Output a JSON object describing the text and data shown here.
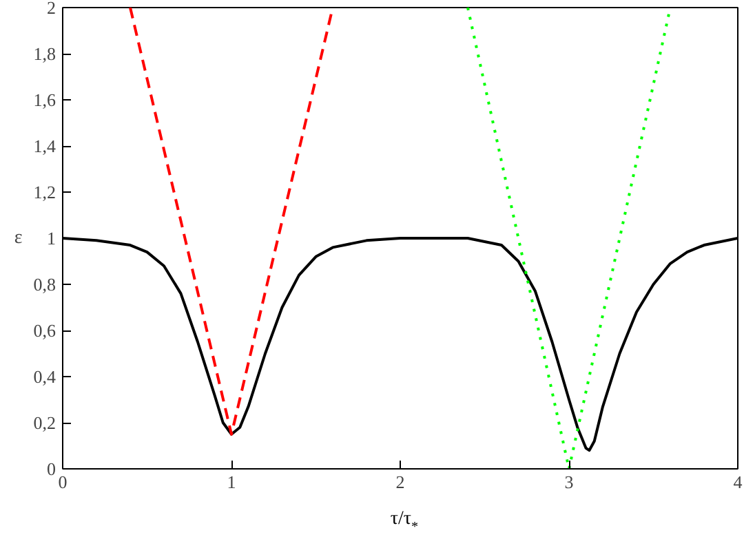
{
  "chart_data": {
    "type": "line",
    "xlabel": "τ/τ$_{*}$",
    "ylabel": "ε",
    "xlim": [
      0,
      4
    ],
    "ylim": [
      0,
      2
    ],
    "xticks": [
      0,
      1,
      2,
      3,
      4
    ],
    "yticks": [
      {
        "value": 0,
        "label": "0"
      },
      {
        "value": 0.2,
        "label": "0,2"
      },
      {
        "value": 0.4,
        "label": "0,4"
      },
      {
        "value": 0.6,
        "label": "0,6"
      },
      {
        "value": 0.8,
        "label": "0,8"
      },
      {
        "value": 1,
        "label": "1"
      },
      {
        "value": 1.2,
        "label": "1,2"
      },
      {
        "value": 1.4,
        "label": "1,4"
      },
      {
        "value": 1.6,
        "label": "1,6"
      },
      {
        "value": 1.8,
        "label": "1,8"
      },
      {
        "value": 2,
        "label": "2"
      }
    ],
    "grid": false,
    "series": [
      {
        "color": "#000000",
        "line_style": "solid",
        "x": [
          0,
          0.2,
          0.4,
          0.5,
          0.6,
          0.7,
          0.8,
          0.9,
          0.95,
          1.0,
          1.05,
          1.1,
          1.2,
          1.3,
          1.4,
          1.5,
          1.6,
          1.8,
          2.0,
          2.4,
          2.6,
          2.7,
          2.8,
          2.9,
          3.0,
          3.05,
          3.1,
          3.12,
          3.15,
          3.2,
          3.3,
          3.4,
          3.5,
          3.6,
          3.7,
          3.8,
          4.0
        ],
        "values": [
          1.0,
          0.99,
          0.97,
          0.94,
          0.88,
          0.76,
          0.55,
          0.32,
          0.2,
          0.15,
          0.18,
          0.27,
          0.5,
          0.7,
          0.84,
          0.92,
          0.96,
          0.99,
          1.0,
          1.0,
          0.97,
          0.9,
          0.77,
          0.55,
          0.3,
          0.18,
          0.09,
          0.08,
          0.12,
          0.27,
          0.5,
          0.68,
          0.8,
          0.89,
          0.94,
          0.97,
          1.0
        ]
      },
      {
        "color": "#ff0000",
        "line_style": "dashed",
        "x": [
          0.4,
          1.0,
          1.6
        ],
        "values": [
          2,
          0.15,
          2
        ]
      },
      {
        "color": "#00ff00",
        "line_style": "dotted",
        "x": [
          2.4,
          3.0,
          3.6
        ],
        "values": [
          2,
          0.0,
          2
        ]
      }
    ]
  }
}
